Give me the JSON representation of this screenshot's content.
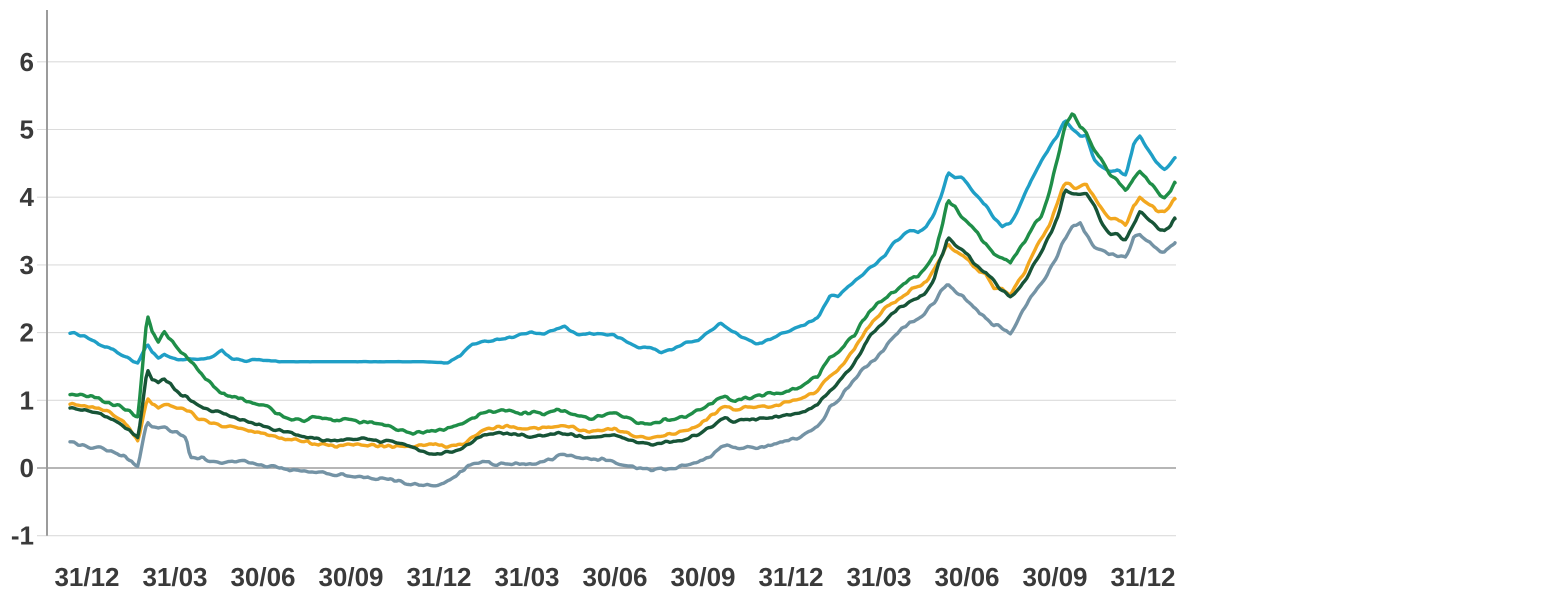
{
  "chart_data": {
    "type": "line",
    "title": "",
    "xlabel": "",
    "ylabel": "",
    "x_axis": {
      "tick_labels": [
        "31/12",
        "31/03",
        "30/06",
        "30/09",
        "31/12",
        "31/03",
        "30/06",
        "30/09",
        "31/12",
        "31/03",
        "30/06",
        "30/09",
        "31/12"
      ],
      "tick_positions_months": [
        0,
        3,
        6,
        9,
        12,
        15,
        18,
        21,
        24,
        27,
        30,
        33,
        36
      ]
    },
    "y_axis": {
      "ticks": [
        -1,
        0,
        1,
        2,
        3,
        4,
        5,
        6
      ],
      "ylim": [
        -1,
        6.7
      ]
    },
    "grid": true,
    "legend_position": "none",
    "t_months": [
      -0.58,
      -0.07,
      0.44,
      0.85,
      1.26,
      1.57,
      1.74,
      1.91,
      2.05,
      2.22,
      2.42,
      2.63,
      2.83,
      3.1,
      3.38,
      3.51,
      3.85,
      4.19,
      4.6,
      4.94,
      5.35,
      5.76,
      6.17,
      6.58,
      6.99,
      7.4,
      7.81,
      8.22,
      8.63,
      9.03,
      9.44,
      9.85,
      10.26,
      10.67,
      11.08,
      11.49,
      11.9,
      12.31,
      12.72,
      13.13,
      13.53,
      13.94,
      14.35,
      14.76,
      15.17,
      15.58,
      15.99,
      16.3,
      16.74,
      17.15,
      17.56,
      17.97,
      18.38,
      18.78,
      19.19,
      19.6,
      20.01,
      20.42,
      20.83,
      21.24,
      21.58,
      21.78,
      22.06,
      22.47,
      22.84,
      23.28,
      23.69,
      24.1,
      24.51,
      24.92,
      25.33,
      25.6,
      25.88,
      26.15,
      26.42,
      26.69,
      26.97,
      27.24,
      27.51,
      27.78,
      28.06,
      28.33,
      28.6,
      28.88,
      29.11,
      29.35,
      29.59,
      29.83,
      30.1,
      30.38,
      30.65,
      30.92,
      31.19,
      31.47,
      31.74,
      32.01,
      32.28,
      32.56,
      32.83,
      33.1,
      33.34,
      33.61,
      33.85,
      34.06,
      34.33,
      34.6,
      34.87,
      35.15,
      35.42,
      35.69,
      35.9,
      36.17,
      36.44,
      36.72,
      36.92,
      37.09
    ],
    "series": [
      {
        "name": "light-blue",
        "color": "#1f9fc6",
        "values": [
          2.0,
          1.95,
          1.82,
          1.75,
          1.65,
          1.58,
          1.55,
          1.7,
          1.85,
          1.7,
          1.63,
          1.68,
          1.64,
          1.6,
          1.6,
          1.62,
          1.6,
          1.62,
          1.73,
          1.62,
          1.58,
          1.6,
          1.58,
          1.57,
          1.57,
          1.57,
          1.57,
          1.57,
          1.57,
          1.57,
          1.57,
          1.57,
          1.57,
          1.57,
          1.57,
          1.57,
          1.56,
          1.56,
          1.66,
          1.83,
          1.86,
          1.9,
          1.92,
          1.97,
          2.0,
          1.98,
          2.05,
          2.08,
          1.96,
          1.99,
          1.98,
          1.96,
          1.87,
          1.78,
          1.78,
          1.71,
          1.76,
          1.85,
          1.89,
          2.02,
          2.15,
          2.08,
          2.0,
          1.91,
          1.82,
          1.9,
          2.0,
          2.05,
          2.13,
          2.23,
          2.55,
          2.53,
          2.65,
          2.75,
          2.85,
          2.96,
          3.05,
          3.15,
          3.33,
          3.42,
          3.52,
          3.48,
          3.55,
          3.75,
          4.0,
          4.37,
          4.28,
          4.3,
          4.14,
          4.0,
          3.88,
          3.7,
          3.58,
          3.62,
          3.8,
          4.1,
          4.32,
          4.55,
          4.75,
          4.92,
          5.15,
          5.0,
          4.9,
          4.92,
          4.55,
          4.45,
          4.38,
          4.4,
          4.32,
          4.8,
          4.9,
          4.7,
          4.52,
          4.4,
          4.48,
          4.58
        ]
      },
      {
        "name": "green",
        "color": "#1f8e48",
        "values": [
          1.1,
          1.08,
          1.02,
          0.95,
          0.88,
          0.8,
          0.77,
          1.6,
          2.25,
          2.0,
          1.85,
          2.0,
          1.9,
          1.75,
          1.65,
          1.6,
          1.43,
          1.25,
          1.1,
          1.05,
          1.0,
          0.95,
          0.9,
          0.78,
          0.73,
          0.71,
          0.75,
          0.72,
          0.71,
          0.7,
          0.68,
          0.67,
          0.61,
          0.56,
          0.52,
          0.53,
          0.55,
          0.58,
          0.66,
          0.73,
          0.81,
          0.84,
          0.85,
          0.81,
          0.81,
          0.8,
          0.85,
          0.84,
          0.79,
          0.74,
          0.78,
          0.8,
          0.75,
          0.68,
          0.66,
          0.7,
          0.73,
          0.77,
          0.84,
          0.95,
          1.03,
          1.05,
          0.99,
          1.03,
          1.06,
          1.09,
          1.12,
          1.15,
          1.25,
          1.35,
          1.64,
          1.7,
          1.85,
          1.95,
          2.15,
          2.32,
          2.45,
          2.52,
          2.6,
          2.68,
          2.8,
          2.85,
          2.95,
          3.15,
          3.5,
          3.97,
          3.85,
          3.7,
          3.6,
          3.45,
          3.3,
          3.15,
          3.12,
          3.02,
          3.2,
          3.38,
          3.58,
          3.75,
          4.1,
          4.6,
          5.05,
          5.25,
          5.05,
          4.98,
          4.7,
          4.55,
          4.35,
          4.25,
          4.1,
          4.28,
          4.38,
          4.25,
          4.1,
          3.96,
          4.05,
          4.22
        ]
      },
      {
        "name": "orange",
        "color": "#f2a71f",
        "values": [
          0.95,
          0.93,
          0.88,
          0.8,
          0.68,
          0.5,
          0.38,
          0.75,
          1.02,
          0.95,
          0.9,
          0.95,
          0.93,
          0.88,
          0.85,
          0.82,
          0.71,
          0.67,
          0.63,
          0.6,
          0.57,
          0.53,
          0.5,
          0.45,
          0.42,
          0.4,
          0.36,
          0.33,
          0.32,
          0.34,
          0.34,
          0.32,
          0.32,
          0.32,
          0.31,
          0.33,
          0.36,
          0.32,
          0.34,
          0.44,
          0.56,
          0.6,
          0.62,
          0.6,
          0.58,
          0.59,
          0.62,
          0.62,
          0.58,
          0.53,
          0.56,
          0.58,
          0.52,
          0.45,
          0.44,
          0.48,
          0.51,
          0.55,
          0.63,
          0.75,
          0.86,
          0.92,
          0.87,
          0.89,
          0.9,
          0.91,
          0.95,
          1.0,
          1.05,
          1.15,
          1.36,
          1.45,
          1.6,
          1.75,
          1.95,
          2.1,
          2.25,
          2.37,
          2.45,
          2.52,
          2.63,
          2.68,
          2.75,
          2.95,
          3.1,
          3.3,
          3.2,
          3.15,
          3.05,
          2.9,
          2.85,
          2.65,
          2.65,
          2.55,
          2.75,
          2.92,
          3.2,
          3.4,
          3.6,
          3.95,
          4.22,
          4.15,
          4.15,
          4.18,
          4.02,
          3.82,
          3.68,
          3.68,
          3.58,
          3.88,
          4.0,
          3.9,
          3.82,
          3.76,
          3.86,
          3.98
        ]
      },
      {
        "name": "dark-green",
        "color": "#175437",
        "values": [
          0.88,
          0.85,
          0.8,
          0.72,
          0.6,
          0.5,
          0.45,
          1.0,
          1.45,
          1.3,
          1.25,
          1.32,
          1.24,
          1.1,
          1.05,
          1.02,
          0.9,
          0.86,
          0.82,
          0.76,
          0.7,
          0.65,
          0.6,
          0.57,
          0.52,
          0.47,
          0.44,
          0.41,
          0.4,
          0.42,
          0.42,
          0.41,
          0.4,
          0.38,
          0.3,
          0.22,
          0.2,
          0.24,
          0.27,
          0.4,
          0.5,
          0.51,
          0.51,
          0.49,
          0.47,
          0.48,
          0.51,
          0.5,
          0.48,
          0.45,
          0.47,
          0.48,
          0.43,
          0.37,
          0.35,
          0.37,
          0.4,
          0.42,
          0.5,
          0.59,
          0.7,
          0.75,
          0.69,
          0.71,
          0.72,
          0.74,
          0.76,
          0.8,
          0.85,
          0.95,
          1.15,
          1.25,
          1.4,
          1.55,
          1.75,
          1.95,
          2.08,
          2.2,
          2.3,
          2.38,
          2.45,
          2.5,
          2.6,
          2.8,
          3.1,
          3.4,
          3.3,
          3.25,
          3.1,
          2.95,
          2.9,
          2.75,
          2.62,
          2.52,
          2.62,
          2.78,
          3.02,
          3.22,
          3.45,
          3.7,
          4.1,
          4.05,
          4.05,
          4.06,
          3.88,
          3.62,
          3.45,
          3.45,
          3.36,
          3.62,
          3.77,
          3.68,
          3.56,
          3.5,
          3.58,
          3.7
        ]
      },
      {
        "name": "slate-gray",
        "color": "#7493a5",
        "values": [
          0.37,
          0.33,
          0.3,
          0.25,
          0.18,
          0.08,
          0.04,
          0.4,
          0.7,
          0.62,
          0.58,
          0.6,
          0.57,
          0.52,
          0.45,
          0.16,
          0.15,
          0.12,
          0.08,
          0.1,
          0.11,
          0.05,
          0.02,
          0.0,
          -0.02,
          -0.05,
          -0.07,
          -0.09,
          -0.1,
          -0.11,
          -0.13,
          -0.15,
          -0.17,
          -0.2,
          -0.24,
          -0.26,
          -0.25,
          -0.18,
          -0.05,
          0.05,
          0.1,
          0.06,
          0.07,
          0.04,
          0.05,
          0.09,
          0.17,
          0.22,
          0.14,
          0.12,
          0.13,
          0.1,
          0.05,
          -0.02,
          -0.03,
          -0.02,
          -0.01,
          0.04,
          0.09,
          0.16,
          0.29,
          0.34,
          0.3,
          0.31,
          0.3,
          0.34,
          0.38,
          0.43,
          0.49,
          0.6,
          0.9,
          1.0,
          1.15,
          1.3,
          1.45,
          1.55,
          1.65,
          1.8,
          1.95,
          2.05,
          2.15,
          2.2,
          2.3,
          2.45,
          2.6,
          2.71,
          2.62,
          2.55,
          2.42,
          2.3,
          2.22,
          2.12,
          2.08,
          2.0,
          2.18,
          2.4,
          2.58,
          2.74,
          2.92,
          3.15,
          3.4,
          3.58,
          3.62,
          3.45,
          3.28,
          3.22,
          3.16,
          3.14,
          3.1,
          3.4,
          3.46,
          3.35,
          3.25,
          3.18,
          3.28,
          3.35
        ]
      }
    ],
    "style": {
      "axis_line_color": "#9b9b9b",
      "gridline_color": "#dcdcdc",
      "zero_line_color": "#9e9e9e",
      "tick_label_color": "#3a3a3a"
    }
  }
}
